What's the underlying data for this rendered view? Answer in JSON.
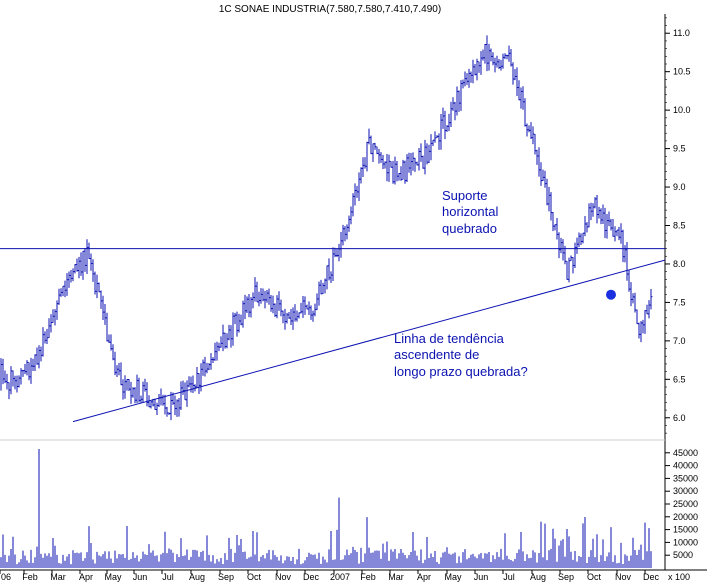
{
  "chart_data": {
    "type": "ohlc",
    "title": "1C SONAE INDUSTRIA(7.580,7.580,7.410,7.490)",
    "price_axis": {
      "range": [
        5.75,
        11.25
      ],
      "ticks": [
        "6.0",
        "6.5",
        "7.0",
        "7.5",
        "8.0",
        "8.5",
        "9.0",
        "9.5",
        "10.0",
        "10.5",
        "11.0"
      ]
    },
    "volume_axis": {
      "range": [
        0,
        50000
      ],
      "ticks": [
        "5000",
        "10000",
        "15000",
        "20000",
        "25000",
        "30000",
        "35000",
        "40000",
        "45000"
      ],
      "unit_label": "x 100"
    },
    "x_axis": {
      "labels": [
        "06",
        "Feb",
        "Mar",
        "Apr",
        "May",
        "Jun",
        "Jul",
        "Aug",
        "Sep",
        "Oct",
        "Nov",
        "Dec",
        "2007",
        "Feb",
        "Mar",
        "Apr",
        "May",
        "Jun",
        "Jul",
        "Aug",
        "Sep",
        "Oct",
        "Nov",
        "Dec"
      ]
    },
    "price_series": [
      {
        "month": "Dec 2005",
        "close": 6.9
      },
      {
        "month": "Jan 2006",
        "close": 6.45
      },
      {
        "month": "Feb 2006",
        "close": 6.7
      },
      {
        "month": "Mar 2006",
        "close": 7.75
      },
      {
        "month": "Apr 2006",
        "close": 8.15
      },
      {
        "month": "May 2006",
        "close": 6.5
      },
      {
        "month": "Jun 2006",
        "close": 6.3
      },
      {
        "month": "Jul 2006",
        "close": 6.15
      },
      {
        "month": "Aug 2006",
        "close": 6.55
      },
      {
        "month": "Sep 2006",
        "close": 7.1
      },
      {
        "month": "Oct 2006",
        "close": 7.6
      },
      {
        "month": "Nov 2006",
        "close": 7.35
      },
      {
        "month": "Dec 2006",
        "close": 7.45
      },
      {
        "month": "Jan 2007",
        "close": 8.25
      },
      {
        "month": "Feb 2007",
        "close": 9.55
      },
      {
        "month": "Mar 2007",
        "close": 9.15
      },
      {
        "month": "Apr 2007",
        "close": 9.4
      },
      {
        "month": "May 2007",
        "close": 10.0
      },
      {
        "month": "Jun 2007",
        "close": 10.75
      },
      {
        "month": "Jul 2007",
        "close": 10.65
      },
      {
        "month": "Aug 2007",
        "close": 9.4
      },
      {
        "month": "Sep 2007",
        "close": 7.9
      },
      {
        "month": "Oct 2007",
        "close": 8.75
      },
      {
        "month": "Nov 2007",
        "close": 8.3
      },
      {
        "month": "Nov 2007 late",
        "close": 7.1
      },
      {
        "month": "Dec 2007",
        "close": 7.49
      }
    ],
    "reference_lines": [
      {
        "kind": "horizontal",
        "price": 8.2,
        "color": "#0b12b0"
      },
      {
        "kind": "trend",
        "from": {
          "month": "Feb 2006",
          "price": 5.95
        },
        "to": {
          "month": "Dec 2007",
          "price": 8.05
        },
        "color": "#0b12b0"
      }
    ],
    "annotations": [
      {
        "lines": [
          "Suporte",
          "horizontal",
          "quebrado"
        ]
      },
      {
        "lines": [
          "Linha de tendência",
          "ascendente de",
          "longo prazo quebrada?"
        ]
      }
    ],
    "colors": {
      "bars": "#0b12b0",
      "lines": "#0b12b0",
      "text": "#0b12b0",
      "marker": "#1a2fe0"
    }
  }
}
